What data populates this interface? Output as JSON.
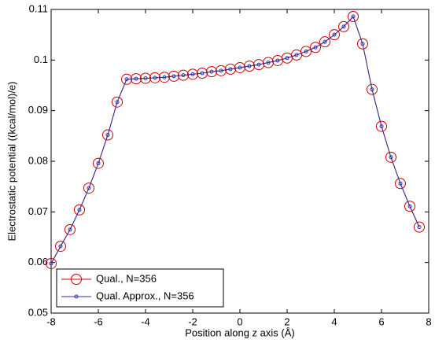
{
  "chart_data": {
    "type": "line",
    "xlabel": "Position along z axis (Å)",
    "ylabel": "Electrostatic potential ((kcal/mol)/e)",
    "x": [
      -8,
      -7.6,
      -7.2,
      -6.8,
      -6.4,
      -6.0,
      -5.6,
      -5.2,
      -4.8,
      -4.4,
      -4.0,
      -3.6,
      -3.2,
      -2.8,
      -2.4,
      -2.0,
      -1.6,
      -1.2,
      -0.8,
      -0.4,
      0,
      0.4,
      0.8,
      1.2,
      1.6,
      2.0,
      2.4,
      2.8,
      3.2,
      3.6,
      4.0,
      4.4,
      4.8,
      5.2,
      5.6,
      6.0,
      6.4,
      6.8,
      7.2,
      7.6
    ],
    "series": [
      {
        "name": "Qual., N=356",
        "color": "#d00000",
        "marker": "circle",
        "values": [
          0.0598,
          0.0632,
          0.0665,
          0.0704,
          0.0747,
          0.0796,
          0.0852,
          0.0917,
          0.0962,
          0.0963,
          0.0964,
          0.0965,
          0.0966,
          0.0968,
          0.097,
          0.0972,
          0.0974,
          0.0977,
          0.0979,
          0.0982,
          0.0985,
          0.0988,
          0.0991,
          0.0995,
          0.0999,
          0.1004,
          0.101,
          0.1017,
          0.1025,
          0.1036,
          0.105,
          0.1066,
          0.1086,
          0.1032,
          0.0942,
          0.0869,
          0.0808,
          0.0756,
          0.0711,
          0.067
        ]
      },
      {
        "name": "Qual. Approx., N=356",
        "color": "#3030a0",
        "marker": "dot",
        "values": [
          0.0598,
          0.0632,
          0.0665,
          0.0704,
          0.0747,
          0.0796,
          0.0852,
          0.0917,
          0.0962,
          0.0963,
          0.0964,
          0.0965,
          0.0966,
          0.0968,
          0.097,
          0.0972,
          0.0974,
          0.0977,
          0.0979,
          0.0982,
          0.0985,
          0.0988,
          0.0991,
          0.0995,
          0.0999,
          0.1004,
          0.101,
          0.1017,
          0.1025,
          0.1036,
          0.105,
          0.1066,
          0.1086,
          0.1032,
          0.0942,
          0.0869,
          0.0808,
          0.0756,
          0.0711,
          0.067
        ]
      }
    ],
    "xlim": [
      -8,
      8
    ],
    "xticks": [
      -8,
      -6,
      -4,
      -2,
      0,
      2,
      4,
      6,
      8
    ],
    "ylim": [
      0.05,
      0.11
    ],
    "yticks": [
      0.05,
      0.06,
      0.07,
      0.08,
      0.09,
      0.1,
      0.11
    ],
    "grid": false,
    "legend": "southwest"
  }
}
